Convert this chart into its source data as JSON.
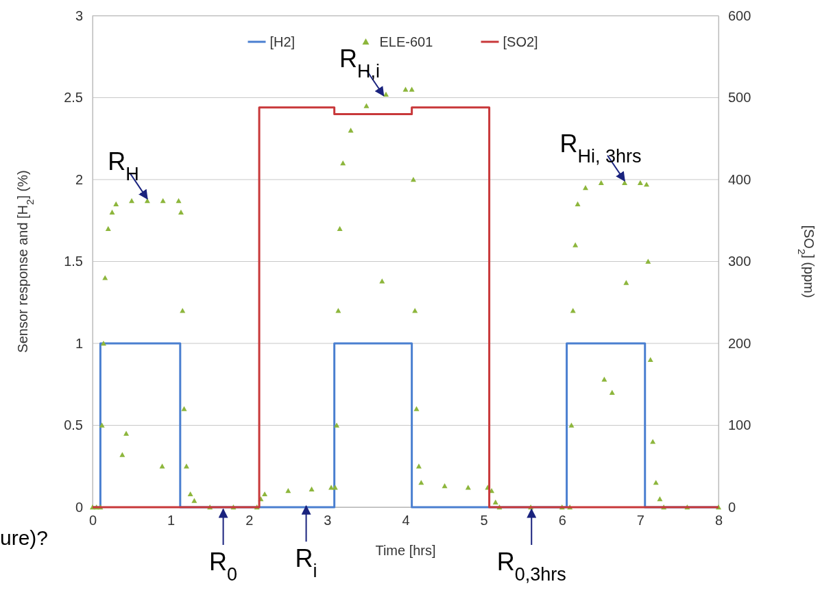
{
  "chart_data": {
    "type": "line",
    "xlabel": "Time  [hrs]",
    "ylabel": "Sensor response and [H$_{2}$] (%)",
    "y2label": "[SO$_{2}$] (ppm)",
    "xlim": [
      0,
      8
    ],
    "xticks": [
      0,
      1,
      2,
      3,
      4,
      5,
      6,
      7,
      8
    ],
    "ylim": [
      0,
      3
    ],
    "yticks": [
      0,
      0.5,
      1,
      1.5,
      2,
      2.5,
      3
    ],
    "y2lim": [
      0,
      600
    ],
    "y2ticks": [
      0,
      100,
      200,
      300,
      400,
      500,
      600
    ],
    "grid": "y",
    "legend": "top",
    "series": [
      {
        "name": "[H2]",
        "type": "step",
        "color": "#4a7fd0",
        "x": [
          0,
          0.1,
          1.12,
          3.09,
          4.08,
          6.06,
          7.06,
          8
        ],
        "values": [
          0,
          1,
          0,
          1,
          0,
          1,
          0,
          0
        ]
      },
      {
        "name": "ELE-601",
        "type": "scatter",
        "marker": "triangle",
        "color": "#8db63c",
        "x": [
          0,
          0.05,
          0.1,
          0.12,
          0.14,
          0.16,
          0.2,
          0.25,
          0.3,
          0.38,
          0.43,
          0.5,
          0.7,
          0.89,
          0.9,
          1.1,
          1.13,
          1.15,
          1.17,
          1.2,
          1.25,
          1.3,
          1.5,
          1.8,
          2.1,
          2.15,
          2.2,
          2.5,
          2.8,
          3.05,
          3.1,
          3.12,
          3.14,
          3.16,
          3.2,
          3.3,
          3.5,
          3.7,
          3.75,
          4.0,
          4.08,
          4.1,
          4.12,
          4.14,
          4.17,
          4.2,
          4.5,
          4.8,
          5.05,
          5.1,
          5.15,
          5.2,
          5.6,
          6.0,
          6.1,
          6.12,
          6.14,
          6.17,
          6.2,
          6.3,
          6.5,
          6.54,
          6.64,
          6.8,
          6.82,
          7.0,
          7.08,
          7.1,
          7.13,
          7.16,
          7.2,
          7.25,
          7.3,
          7.6,
          8.0
        ],
        "values": [
          0,
          0,
          0,
          0.5,
          1.0,
          1.4,
          1.7,
          1.8,
          1.85,
          0.32,
          0.45,
          1.87,
          1.87,
          0.25,
          1.87,
          1.87,
          1.8,
          1.2,
          0.6,
          0.25,
          0.08,
          0.04,
          0,
          0,
          0,
          0.05,
          0.08,
          0.1,
          0.11,
          0.12,
          0.12,
          0.5,
          1.2,
          1.7,
          2.1,
          2.3,
          2.45,
          1.38,
          2.52,
          2.55,
          2.55,
          2.0,
          1.2,
          0.6,
          0.25,
          0.15,
          0.13,
          0.12,
          0.12,
          0.1,
          0.03,
          0,
          0,
          0,
          0,
          0.5,
          1.2,
          1.6,
          1.85,
          1.95,
          1.98,
          0.78,
          0.7,
          1.98,
          1.37,
          1.98,
          1.97,
          1.5,
          0.9,
          0.4,
          0.15,
          0.05,
          0,
          0,
          0
        ]
      },
      {
        "name": "[SO2]",
        "type": "step",
        "axis": "y2",
        "color": "#c8383a",
        "x": [
          0,
          2.13,
          3.09,
          4.08,
          5.07,
          8
        ],
        "values": [
          0,
          488,
          480,
          488,
          0,
          0
        ]
      }
    ],
    "annotations": [
      {
        "text": "R$_{H}$",
        "x": 0.7,
        "y": 1.87
      },
      {
        "text": "R$_{H,i}$",
        "x": 3.72,
        "y": 2.5
      },
      {
        "text": "R$_{Hi, 3hrs}$",
        "x": 6.8,
        "y": 1.98
      },
      {
        "text": "R$_{0}$",
        "x": 1.67,
        "y": 0
      },
      {
        "text": "R$_{i}$",
        "x": 2.73,
        "y": 0.02
      },
      {
        "text": "R$_{0,3hrs}$",
        "x": 5.61,
        "y": 0
      },
      "ure)?"
    ]
  }
}
